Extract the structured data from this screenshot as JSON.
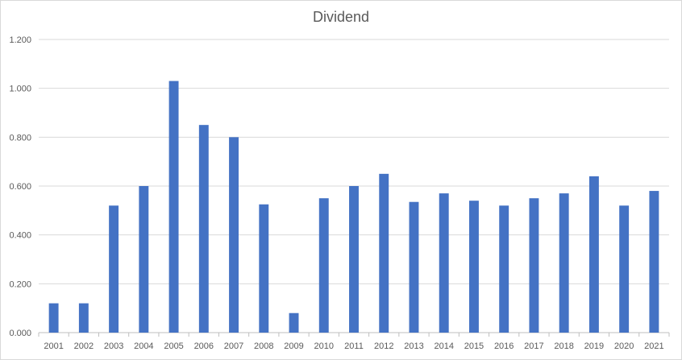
{
  "chart_data": {
    "type": "bar",
    "title": "Dividend",
    "xlabel": "",
    "ylabel": "",
    "categories": [
      "2001",
      "2002",
      "2003",
      "2004",
      "2005",
      "2006",
      "2007",
      "2008",
      "2009",
      "2010",
      "2011",
      "2012",
      "2013",
      "2014",
      "2015",
      "2016",
      "2017",
      "2018",
      "2019",
      "2020",
      "2021"
    ],
    "values": [
      0.12,
      0.12,
      0.52,
      0.6,
      1.03,
      0.85,
      0.8,
      0.525,
      0.08,
      0.55,
      0.6,
      0.65,
      0.535,
      0.57,
      0.54,
      0.52,
      0.55,
      0.57,
      0.64,
      0.52,
      0.58
    ],
    "ylim": [
      0,
      1.2
    ],
    "yticks": [
      "0.000",
      "0.200",
      "0.400",
      "0.600",
      "0.800",
      "1.000",
      "1.200"
    ],
    "grid": true,
    "bar_color": "#4472c4",
    "grid_color": "#d9d9d9"
  }
}
